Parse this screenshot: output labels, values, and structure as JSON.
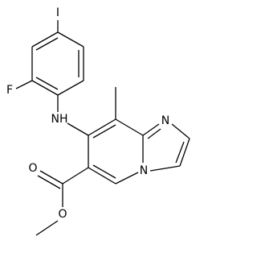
{
  "atoms": {
    "iodine": "I",
    "fluorine": "F",
    "amine": "NH",
    "imidazole_n": "N",
    "bridge_n": "N",
    "carbonyl_o": "O",
    "ester_o": "O"
  }
}
